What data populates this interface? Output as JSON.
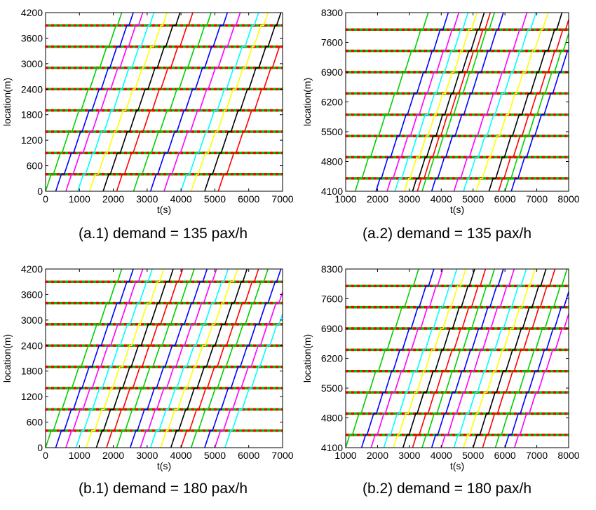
{
  "colors": {
    "bus_cycle": [
      "#00d000",
      "#0000ff",
      "#ff00ff",
      "#00ffff",
      "#ffff00",
      "#000000",
      "#ff0000"
    ],
    "stop_line_dash_a": "#ff0000",
    "stop_line_dash_b": "#00c000"
  },
  "chart_data": [
    {
      "type": "line",
      "caption": "(a.1) demand = 135 pax/h",
      "xlabel": "t(s)",
      "ylabel": "location(m)",
      "xlim": [
        0,
        7000
      ],
      "ylim": [
        0,
        4200
      ],
      "xticks": [
        "0",
        "1000",
        "2000",
        "3000",
        "4000",
        "5000",
        "6000",
        "7000"
      ],
      "yticks": [
        "0",
        "600",
        "1200",
        "1800",
        "2400",
        "3000",
        "3600",
        "4200"
      ],
      "stops": [
        400,
        900,
        1400,
        1900,
        2400,
        2900,
        3400,
        3900
      ],
      "bus_start_times": [
        0,
        300,
        600,
        950,
        1300,
        1700,
        2100,
        2600,
        3100,
        3500,
        4000,
        4300,
        4700,
        5100
      ],
      "grid": false
    },
    {
      "type": "line",
      "caption": "(a.2) demand = 135 pax/h",
      "xlabel": "t(s)",
      "ylabel": "location(m)",
      "xlim": [
        1000,
        8000
      ],
      "ylim": [
        4100,
        8300
      ],
      "xticks": [
        "1000",
        "2000",
        "3000",
        "4000",
        "5000",
        "6000",
        "7000",
        "8000"
      ],
      "yticks": [
        "4100",
        "4800",
        "5500",
        "6200",
        "6900",
        "7600",
        "8300"
      ],
      "stops": [
        4400,
        4900,
        5400,
        5900,
        6400,
        6900,
        7400,
        7900
      ],
      "bus_start_times": [
        1300,
        1950,
        2300,
        2550,
        2850,
        3100,
        3250,
        3400,
        3700,
        4400,
        4700,
        5100,
        5500,
        5800,
        6000,
        6200
      ],
      "grid": false
    },
    {
      "type": "line",
      "caption": "(b.1) demand = 180 pax/h",
      "xlabel": "t(s)",
      "ylabel": "location(m)",
      "xlim": [
        0,
        7000
      ],
      "ylim": [
        0,
        4200
      ],
      "xticks": [
        "0",
        "1000",
        "2000",
        "3000",
        "4000",
        "5000",
        "6000",
        "7000"
      ],
      "yticks": [
        "0",
        "600",
        "1200",
        "1800",
        "2400",
        "3000",
        "3600",
        "4200"
      ],
      "stops": [
        400,
        900,
        1400,
        1900,
        2400,
        2900,
        3400,
        3900
      ],
      "bus_start_times": [
        0,
        300,
        600,
        900,
        1200,
        1500,
        1800,
        2100,
        2500,
        2800,
        3100,
        3400,
        3700,
        4000,
        4300,
        4700,
        5000,
        5300
      ],
      "grid": false
    },
    {
      "type": "line",
      "caption": "(b.2) demand = 180 pax/h",
      "xlabel": "t(s)",
      "ylabel": "location(m)",
      "xlim": [
        1000,
        8000
      ],
      "ylim": [
        4100,
        8300
      ],
      "xticks": [
        "1000",
        "2000",
        "3000",
        "4000",
        "5000",
        "6000",
        "7000",
        "8000"
      ],
      "yticks": [
        "4100",
        "4800",
        "5500",
        "6200",
        "6900",
        "7600",
        "8300"
      ],
      "stops": [
        4400,
        4900,
        5400,
        5900,
        6400,
        6900,
        7400,
        7900
      ],
      "bus_start_times": [
        1000,
        1500,
        1800,
        2200,
        2500,
        2800,
        3100,
        3400,
        3700,
        4000,
        4400,
        4700,
        5000,
        5300,
        5700,
        6000,
        6300
      ],
      "grid": false
    }
  ]
}
